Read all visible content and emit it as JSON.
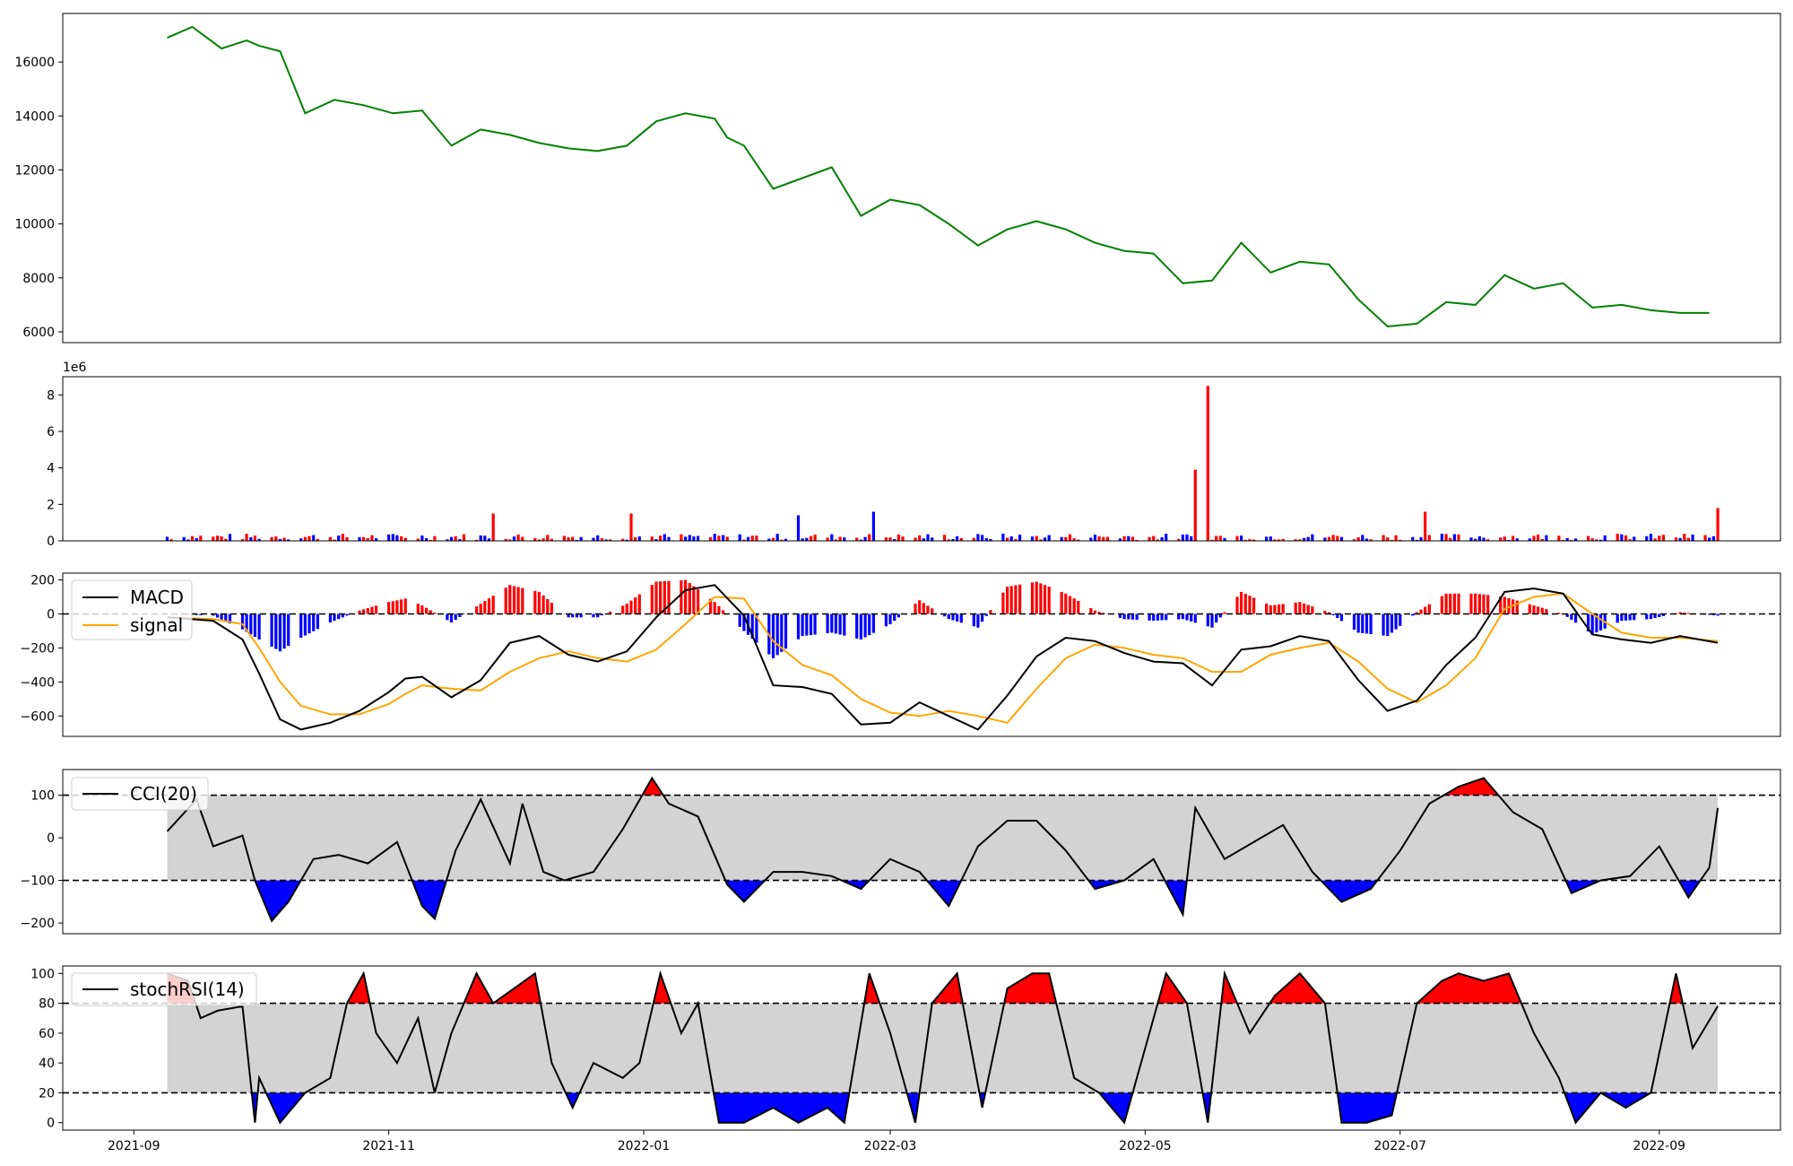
{
  "chart_data": [
    {
      "id": "price",
      "type": "line",
      "color": "#008000",
      "ylim": [
        5600,
        17800
      ],
      "yticks": [
        6000,
        8000,
        10000,
        12000,
        14000,
        16000
      ],
      "ytick_labels": [
        "6000",
        "8000",
        "10000",
        "12000",
        "14000",
        "16000"
      ],
      "x_dates": [
        "2021-09-09",
        "2021-09-15",
        "2021-09-22",
        "2021-09-28",
        "2021-10-01",
        "2021-10-06",
        "2021-10-12",
        "2021-10-19",
        "2021-10-26",
        "2021-11-02",
        "2021-11-09",
        "2021-11-16",
        "2021-11-23",
        "2021-11-30",
        "2021-12-07",
        "2021-12-14",
        "2021-12-21",
        "2021-12-28",
        "2022-01-04",
        "2022-01-11",
        "2022-01-18",
        "2022-01-21",
        "2022-01-25",
        "2022-02-01",
        "2022-02-08",
        "2022-02-15",
        "2022-02-22",
        "2022-03-01",
        "2022-03-08",
        "2022-03-15",
        "2022-03-22",
        "2022-03-29",
        "2022-04-05",
        "2022-04-12",
        "2022-04-19",
        "2022-04-26",
        "2022-05-03",
        "2022-05-10",
        "2022-05-17",
        "2022-05-24",
        "2022-05-31",
        "2022-06-07",
        "2022-06-14",
        "2022-06-21",
        "2022-06-28",
        "2022-07-05",
        "2022-07-12",
        "2022-07-19",
        "2022-07-26",
        "2022-08-02",
        "2022-08-09",
        "2022-08-16",
        "2022-08-23",
        "2022-08-30",
        "2022-09-06",
        "2022-09-13"
      ],
      "y": [
        16900,
        17300,
        16500,
        16800,
        16600,
        16400,
        14100,
        14600,
        14400,
        14100,
        14200,
        12900,
        13500,
        13300,
        13000,
        12800,
        12700,
        12900,
        13800,
        14100,
        13900,
        13200,
        12900,
        11300,
        11700,
        12100,
        10300,
        10900,
        10700,
        10000,
        9200,
        9800,
        10100,
        9800,
        9300,
        9000,
        8900,
        7800,
        7900,
        9300,
        8200,
        8600,
        8500,
        7200,
        6200,
        6300,
        7100,
        7000,
        8100,
        7600,
        7800,
        6900,
        7000,
        6800,
        6700,
        6700
      ]
    },
    {
      "id": "volume",
      "type": "bar",
      "colors": {
        "up": "#ff0000",
        "down": "#0000ff"
      },
      "scale_label": "1e6",
      "ylim": [
        0,
        9.0
      ],
      "yticks": [
        0,
        2,
        4,
        6,
        8
      ],
      "ytick_labels": [
        "0",
        "2",
        "4",
        "6",
        "8"
      ],
      "spikes": [
        {
          "date": "2021-11-26",
          "value": 1.5,
          "dir": "up"
        },
        {
          "date": "2021-12-29",
          "value": 1.5,
          "dir": "up"
        },
        {
          "date": "2022-02-07",
          "value": 1.4,
          "dir": "down"
        },
        {
          "date": "2022-02-25",
          "value": 1.6,
          "dir": "down"
        },
        {
          "date": "2022-05-13",
          "value": 3.9,
          "dir": "up"
        },
        {
          "date": "2022-05-16",
          "value": 8.5,
          "dir": "up"
        },
        {
          "date": "2022-07-07",
          "value": 1.6,
          "dir": "up"
        },
        {
          "date": "2022-09-15",
          "value": 1.8,
          "dir": "up"
        }
      ]
    },
    {
      "id": "macd",
      "type": "line",
      "series": [
        {
          "name": "MACD",
          "color": "#000000",
          "x_dates": [
            "2021-09-09",
            "2021-09-20",
            "2021-09-27",
            "2021-10-01",
            "2021-10-06",
            "2021-10-11",
            "2021-10-18",
            "2021-10-25",
            "2021-11-01",
            "2021-11-05",
            "2021-11-09",
            "2021-11-16",
            "2021-11-23",
            "2021-11-30",
            "2021-12-07",
            "2021-12-14",
            "2021-12-21",
            "2021-12-28",
            "2022-01-04",
            "2022-01-11",
            "2022-01-18",
            "2022-01-25",
            "2022-02-01",
            "2022-02-08",
            "2022-02-15",
            "2022-02-22",
            "2022-03-01",
            "2022-03-08",
            "2022-03-15",
            "2022-03-22",
            "2022-03-29",
            "2022-04-05",
            "2022-04-12",
            "2022-04-19",
            "2022-04-26",
            "2022-05-03",
            "2022-05-10",
            "2022-05-17",
            "2022-05-24",
            "2022-05-31",
            "2022-06-07",
            "2022-06-14",
            "2022-06-21",
            "2022-06-28",
            "2022-07-05",
            "2022-07-12",
            "2022-07-19",
            "2022-07-26",
            "2022-08-02",
            "2022-08-09",
            "2022-08-16",
            "2022-08-23",
            "2022-08-30",
            "2022-09-06",
            "2022-09-15"
          ],
          "y": [
            -20,
            -40,
            -150,
            -350,
            -620,
            -680,
            -640,
            -570,
            -460,
            -380,
            -370,
            -490,
            -390,
            -170,
            -130,
            -240,
            -280,
            -220,
            -20,
            140,
            170,
            -10,
            -420,
            -430,
            -470,
            -650,
            -640,
            -520,
            -600,
            -680,
            -480,
            -250,
            -140,
            -160,
            -230,
            -280,
            -290,
            -420,
            -210,
            -190,
            -130,
            -160,
            -390,
            -570,
            -510,
            -300,
            -140,
            130,
            150,
            120,
            -120,
            -150,
            -170,
            -130,
            -170
          ]
        },
        {
          "name": "signal",
          "color": "#ffa500",
          "x_dates": [
            "2021-09-09",
            "2021-09-20",
            "2021-09-27",
            "2021-10-01",
            "2021-10-06",
            "2021-10-11",
            "2021-10-18",
            "2021-10-25",
            "2021-11-01",
            "2021-11-05",
            "2021-11-09",
            "2021-11-16",
            "2021-11-23",
            "2021-11-30",
            "2021-12-07",
            "2021-12-14",
            "2021-12-21",
            "2021-12-28",
            "2022-01-04",
            "2022-01-11",
            "2022-01-18",
            "2022-01-25",
            "2022-02-01",
            "2022-02-08",
            "2022-02-15",
            "2022-02-22",
            "2022-03-01",
            "2022-03-08",
            "2022-03-15",
            "2022-03-22",
            "2022-03-29",
            "2022-04-05",
            "2022-04-12",
            "2022-04-19",
            "2022-04-26",
            "2022-05-03",
            "2022-05-10",
            "2022-05-17",
            "2022-05-24",
            "2022-05-31",
            "2022-06-07",
            "2022-06-14",
            "2022-06-21",
            "2022-06-28",
            "2022-07-05",
            "2022-07-12",
            "2022-07-19",
            "2022-07-26",
            "2022-08-02",
            "2022-08-09",
            "2022-08-16",
            "2022-08-23",
            "2022-08-30",
            "2022-09-06",
            "2022-09-15"
          ],
          "y": [
            -20,
            -30,
            -60,
            -200,
            -400,
            -540,
            -590,
            -590,
            -530,
            -470,
            -420,
            -440,
            -450,
            -340,
            -260,
            -220,
            -260,
            -280,
            -210,
            -60,
            100,
            90,
            -160,
            -300,
            -360,
            -500,
            -580,
            -600,
            -570,
            -600,
            -640,
            -440,
            -260,
            -180,
            -200,
            -240,
            -260,
            -340,
            -340,
            -240,
            -200,
            -170,
            -280,
            -440,
            -520,
            -420,
            -260,
            30,
            100,
            120,
            0,
            -110,
            -140,
            -140,
            -160
          ]
        }
      ],
      "histogram_colors": {
        "positive": "#ff0000",
        "negative": "#0000ff"
      },
      "reference_line": 0,
      "ylim": [
        -720,
        240
      ],
      "yticks": [
        -600,
        -400,
        -200,
        0,
        200
      ],
      "ytick_labels": [
        "−600",
        "−400",
        "−200",
        "0",
        "200"
      ],
      "legend_position": "upper-left"
    },
    {
      "id": "cci",
      "type": "line",
      "series": [
        {
          "name": "CCI(20)",
          "color": "#000000",
          "x_dates": [
            "2021-09-09",
            "2021-09-16",
            "2021-09-20",
            "2021-09-27",
            "2021-09-30",
            "2021-10-04",
            "2021-10-08",
            "2021-10-14",
            "2021-10-20",
            "2021-10-27",
            "2021-11-03",
            "2021-11-09",
            "2021-11-12",
            "2021-11-17",
            "2021-11-23",
            "2021-11-30",
            "2021-12-03",
            "2021-12-08",
            "2021-12-13",
            "2021-12-20",
            "2021-12-27",
            "2022-01-03",
            "2022-01-07",
            "2022-01-14",
            "2022-01-21",
            "2022-01-25",
            "2022-02-01",
            "2022-02-08",
            "2022-02-15",
            "2022-02-22",
            "2022-03-01",
            "2022-03-08",
            "2022-03-15",
            "2022-03-22",
            "2022-03-29",
            "2022-04-05",
            "2022-04-12",
            "2022-04-19",
            "2022-04-26",
            "2022-05-03",
            "2022-05-10",
            "2022-05-13",
            "2022-05-20",
            "2022-05-27",
            "2022-06-03",
            "2022-06-10",
            "2022-06-17",
            "2022-06-24",
            "2022-07-01",
            "2022-07-08",
            "2022-07-15",
            "2022-07-21",
            "2022-07-28",
            "2022-08-04",
            "2022-08-11",
            "2022-08-18",
            "2022-08-25",
            "2022-09-01",
            "2022-09-08",
            "2022-09-13",
            "2022-09-15"
          ],
          "y": [
            15,
            90,
            -20,
            5,
            -100,
            -195,
            -150,
            -50,
            -40,
            -60,
            -10,
            -160,
            -190,
            -30,
            90,
            -60,
            80,
            -80,
            -100,
            -80,
            20,
            140,
            80,
            50,
            -110,
            -150,
            -80,
            -80,
            -90,
            -120,
            -50,
            -80,
            -160,
            -20,
            40,
            40,
            -30,
            -120,
            -100,
            -50,
            -180,
            70,
            -50,
            -10,
            30,
            -80,
            -150,
            -120,
            -30,
            80,
            120,
            140,
            60,
            20,
            -130,
            -100,
            -90,
            -20,
            -140,
            -70,
            70
          ]
        }
      ],
      "band": [
        -100,
        100
      ],
      "band_color": "#d3d3d3",
      "overbought_color": "#ff0000",
      "oversold_color": "#0000ff",
      "ylim": [
        -225,
        160
      ],
      "yticks": [
        -200,
        -100,
        0,
        100
      ],
      "ytick_labels": [
        "−200",
        "−100",
        "0",
        "100"
      ],
      "legend_position": "upper-left"
    },
    {
      "id": "stochrsi",
      "type": "line",
      "series": [
        {
          "name": "stochRSI(14)",
          "color": "#000000",
          "x_dates": [
            "2021-09-09",
            "2021-09-14",
            "2021-09-17",
            "2021-09-21",
            "2021-09-27",
            "2021-09-30",
            "2021-10-01",
            "2021-10-06",
            "2021-10-12",
            "2021-10-18",
            "2021-10-22",
            "2021-10-26",
            "2021-10-29",
            "2021-11-03",
            "2021-11-08",
            "2021-11-12",
            "2021-11-16",
            "2021-11-22",
            "2021-11-26",
            "2021-12-01",
            "2021-12-06",
            "2021-12-10",
            "2021-12-15",
            "2021-12-20",
            "2021-12-27",
            "2021-12-31",
            "2022-01-05",
            "2022-01-10",
            "2022-01-14",
            "2022-01-19",
            "2022-01-25",
            "2022-02-01",
            "2022-02-07",
            "2022-02-14",
            "2022-02-18",
            "2022-02-24",
            "2022-03-01",
            "2022-03-07",
            "2022-03-11",
            "2022-03-17",
            "2022-03-23",
            "2022-03-29",
            "2022-04-04",
            "2022-04-08",
            "2022-04-14",
            "2022-04-20",
            "2022-04-26",
            "2022-05-02",
            "2022-05-06",
            "2022-05-11",
            "2022-05-16",
            "2022-05-20",
            "2022-05-26",
            "2022-06-01",
            "2022-06-07",
            "2022-06-13",
            "2022-06-17",
            "2022-06-23",
            "2022-06-29",
            "2022-07-05",
            "2022-07-11",
            "2022-07-15",
            "2022-07-21",
            "2022-07-27",
            "2022-08-02",
            "2022-08-08",
            "2022-08-12",
            "2022-08-18",
            "2022-08-24",
            "2022-08-30",
            "2022-09-05",
            "2022-09-09",
            "2022-09-15"
          ],
          "y": [
            100,
            95,
            70,
            75,
            78,
            0,
            30,
            0,
            20,
            30,
            80,
            100,
            60,
            40,
            70,
            20,
            60,
            100,
            80,
            90,
            100,
            40,
            10,
            40,
            30,
            40,
            100,
            60,
            80,
            0,
            0,
            10,
            0,
            10,
            0,
            100,
            60,
            0,
            80,
            100,
            10,
            90,
            100,
            100,
            30,
            20,
            0,
            60,
            100,
            80,
            0,
            100,
            60,
            85,
            100,
            80,
            0,
            0,
            5,
            80,
            95,
            100,
            95,
            100,
            60,
            30,
            0,
            20,
            10,
            20,
            100,
            50,
            78
          ]
        }
      ],
      "band": [
        20,
        80
      ],
      "band_color": "#d3d3d3",
      "overbought_color": "#ff0000",
      "oversold_color": "#0000ff",
      "ylim": [
        -5,
        105
      ],
      "yticks": [
        0,
        20,
        40,
        60,
        80,
        100
      ],
      "ytick_labels": [
        "0",
        "20",
        "40",
        "60",
        "80",
        "100"
      ],
      "legend_position": "upper-left"
    }
  ],
  "x_axis": {
    "tick_dates": [
      "2021-09-01",
      "2021-11-01",
      "2022-01-01",
      "2022-03-01",
      "2022-05-01",
      "2022-07-01",
      "2022-09-01"
    ],
    "tick_labels": [
      "2021-09",
      "2021-11",
      "2022-01",
      "2022-03",
      "2022-05",
      "2022-07",
      "2022-09"
    ]
  }
}
